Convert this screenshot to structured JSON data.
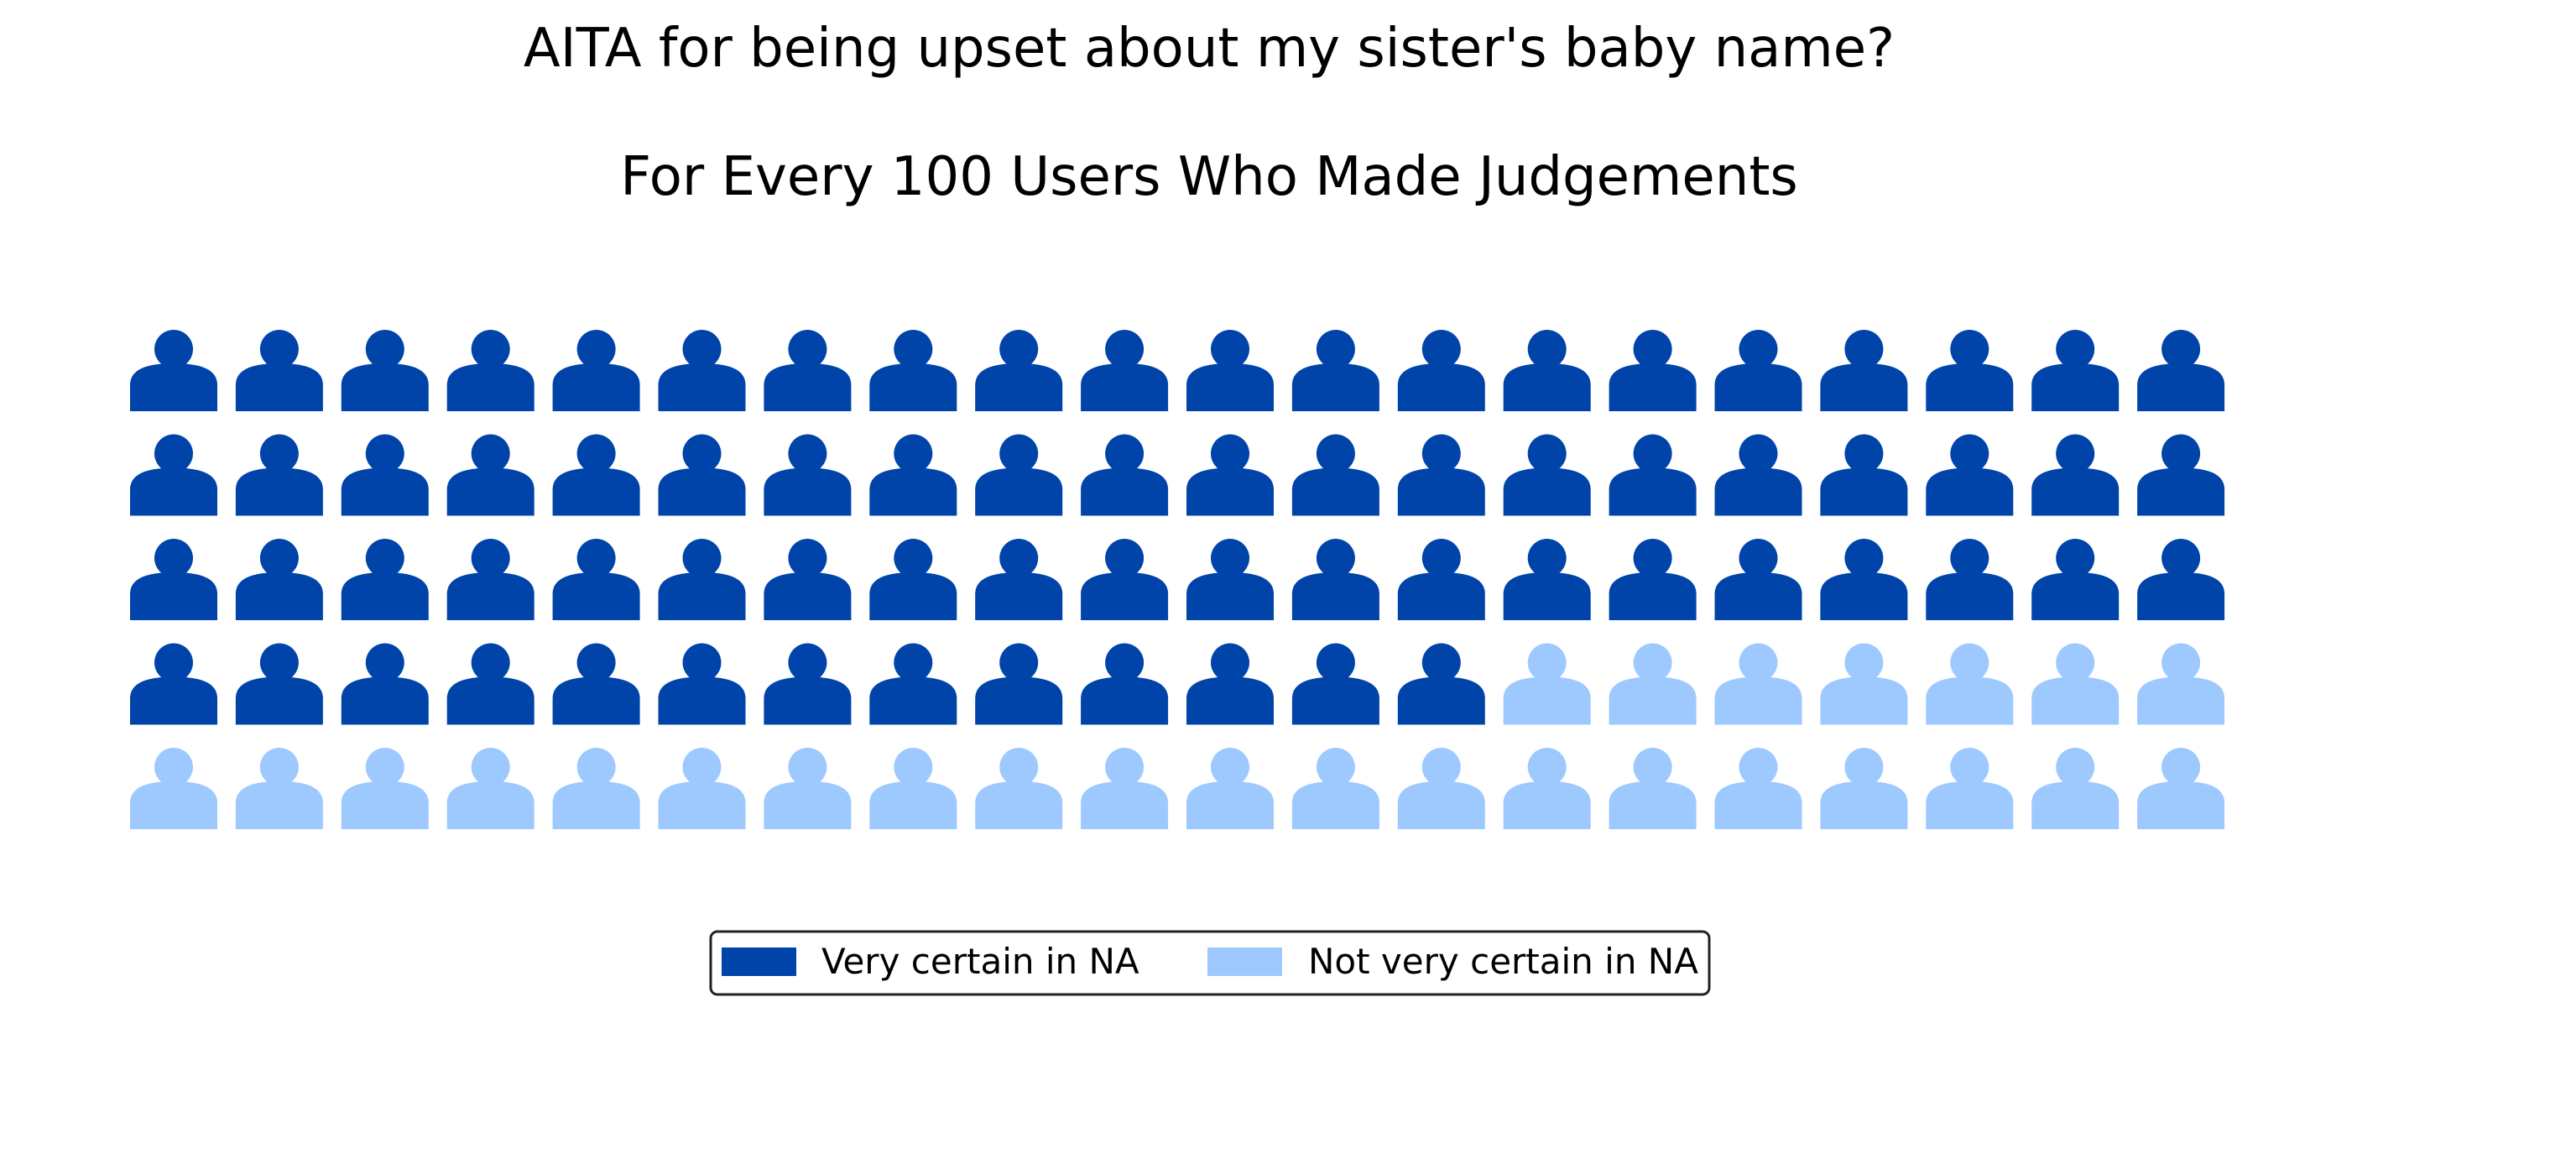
{
  "chart_data": {
    "type": "waffle",
    "title": "AITA for being upset about my sister's baby name?",
    "subtitle": "For Every 100 Users Who Made Judgements",
    "rows": 5,
    "columns": 20,
    "series": [
      {
        "name": "Very certain in NA",
        "value": 73,
        "color": "#0044aa"
      },
      {
        "name": "Not very certain in NA",
        "value": 27,
        "color": "#9ec9ff"
      }
    ],
    "icon": "person-icon",
    "legend_position": "bottom-center"
  }
}
